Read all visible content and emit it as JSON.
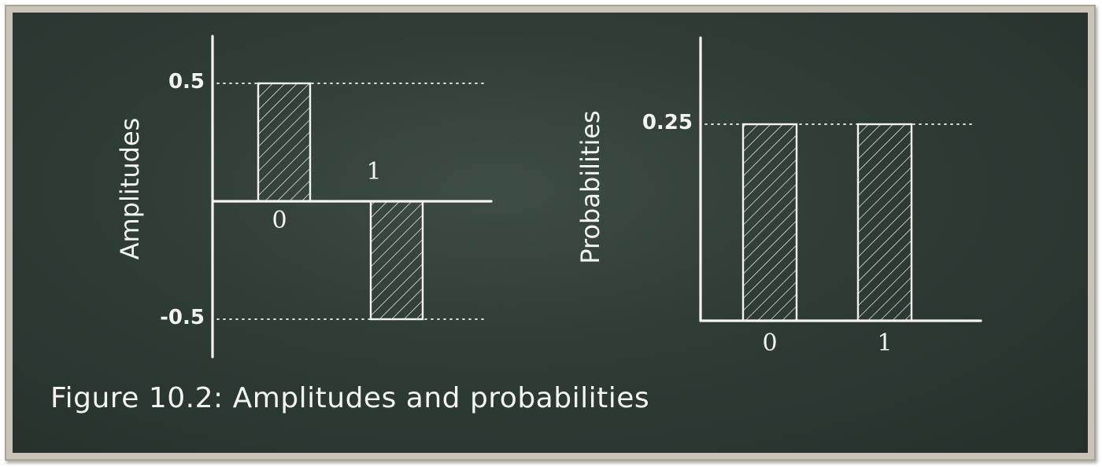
{
  "caption": "Figure 10.2: Amplitudes and probabilities",
  "colors": {
    "board": "#2f3c36",
    "chalk": "#f4f4f0",
    "frame": "#c9c3b8"
  },
  "chart_data": [
    {
      "type": "bar",
      "ylabel": "Amplitudes",
      "categories": [
        "0",
        "1"
      ],
      "values": [
        0.5,
        -0.5
      ],
      "reference_lines": [
        {
          "value": 0.5,
          "label": "0.5"
        },
        {
          "value": -0.5,
          "label": "-0.5"
        }
      ],
      "ylim": [
        -0.66,
        0.7
      ],
      "bar_fill": "hatched",
      "grid": false
    },
    {
      "type": "bar",
      "ylabel": "Probabilities",
      "categories": [
        "0",
        "1"
      ],
      "values": [
        0.25,
        0.25
      ],
      "reference_lines": [
        {
          "value": 0.25,
          "label": "0.25"
        }
      ],
      "ylim": [
        0,
        0.36
      ],
      "bar_fill": "hatched",
      "grid": false
    }
  ]
}
